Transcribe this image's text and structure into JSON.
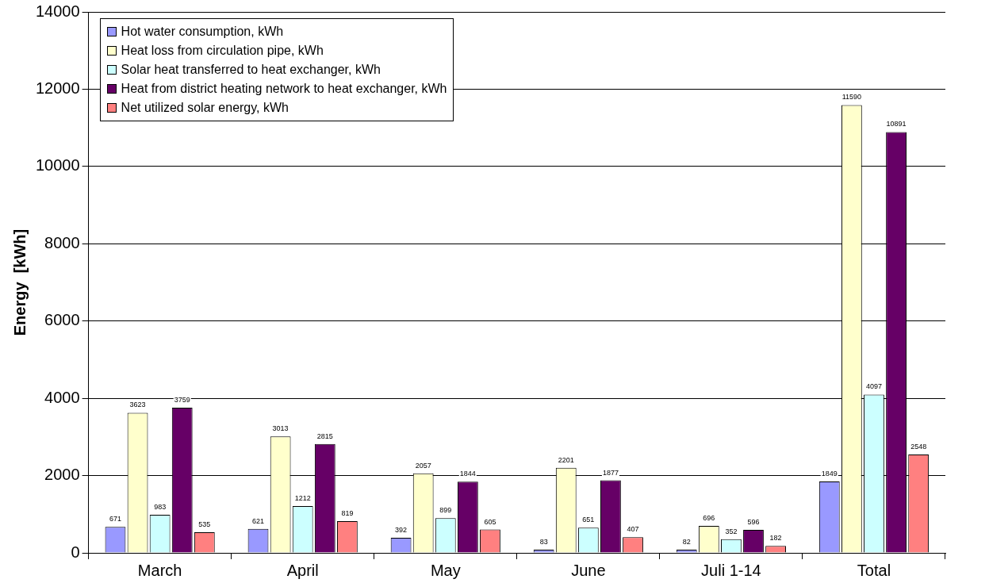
{
  "chart_data": {
    "type": "bar",
    "ylabel": "Energy  [kWh]",
    "categories": [
      "March",
      "April",
      "May",
      "June",
      "Juli 1-14",
      "Total"
    ],
    "series": [
      {
        "name": "Hot water consumption, kWh",
        "color": "#9999ff",
        "values": [
          671,
          621,
          392,
          83,
          82,
          1849
        ]
      },
      {
        "name": "Heat loss from circulation pipe, kWh",
        "color": "#ffffcc",
        "values": [
          3623,
          3013,
          2057,
          2201,
          696,
          11590
        ]
      },
      {
        "name": "Solar heat transferred to heat exchanger, kWh",
        "color": "#ccffff",
        "values": [
          983,
          1212,
          899,
          651,
          352,
          4097
        ]
      },
      {
        "name": "Heat from district heating network to heat exchanger, kWh",
        "color": "#660066",
        "values": [
          3759,
          2815,
          1844,
          1877,
          596,
          10891
        ]
      },
      {
        "name": "Net utilized solar energy, kWh",
        "color": "#ff8080",
        "values": [
          535,
          819,
          605,
          407,
          182,
          2548
        ]
      }
    ],
    "ylim": [
      0,
      14000
    ],
    "yticks": [
      0,
      2000,
      4000,
      6000,
      8000,
      10000,
      12000,
      14000
    ],
    "grid": "y",
    "legend": "top left",
    "data_labels": true
  }
}
